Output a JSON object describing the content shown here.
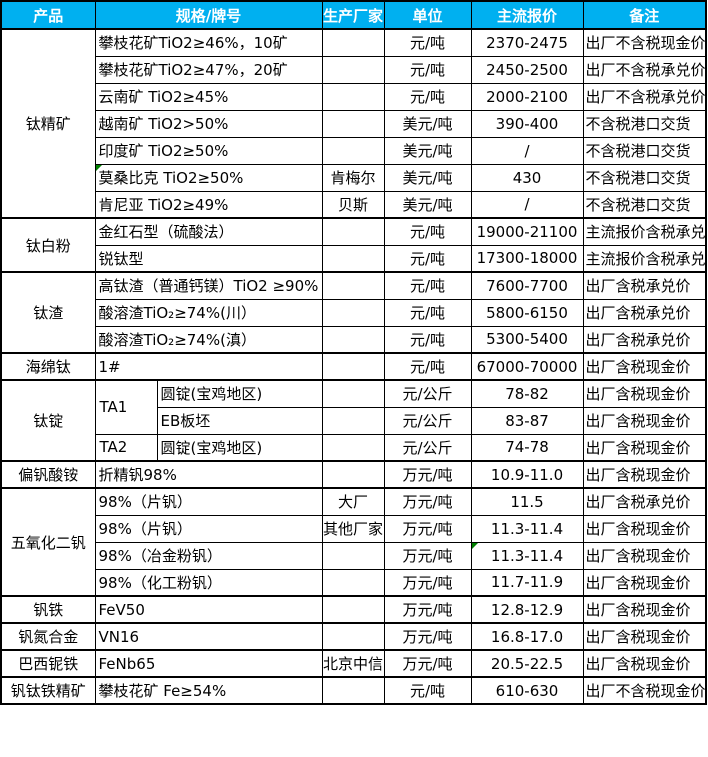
{
  "colors": {
    "header_bg": "#00B0F0",
    "header_text": "#FFFFFF",
    "border": "#000000",
    "marker": "#008000"
  },
  "header": {
    "columns": [
      "产品",
      "规格/牌号",
      "生产厂家",
      "单位",
      "主流报价",
      "备注"
    ]
  },
  "groups": [
    {
      "product": "钛精矿",
      "rows": [
        {
          "spec": "攀枝花矿TiO2≥46%，10矿",
          "maker": "",
          "unit": "元/吨",
          "price": "2370-2475",
          "note": "出厂不含税现金价"
        },
        {
          "spec": "攀枝花矿TiO2≥47%，20矿",
          "maker": "",
          "unit": "元/吨",
          "price": "2450-2500",
          "note": "出厂不含税承兑价"
        },
        {
          "spec": "云南矿 TiO2≥45%",
          "maker": "",
          "unit": "元/吨",
          "price": "2000-2100",
          "note": "出厂不含税承兑价"
        },
        {
          "spec": "越南矿 TiO2>50%",
          "maker": "",
          "unit": "美元/吨",
          "price": "390-400",
          "note": "不含税港口交货"
        },
        {
          "spec": "印度矿 TiO2≥50%",
          "maker": "",
          "unit": "美元/吨",
          "price": "/",
          "note": "不含税港口交货"
        },
        {
          "spec": "莫桑比克 TiO2≥50%",
          "maker": "肯梅尔",
          "unit": "美元/吨",
          "price": "430",
          "note": "不含税港口交货",
          "marker": "spec"
        },
        {
          "spec": "肯尼亚 TiO2≥49%",
          "maker": "贝斯",
          "unit": "美元/吨",
          "price": "/",
          "note": "不含税港口交货"
        }
      ]
    },
    {
      "product": "钛白粉",
      "rows": [
        {
          "spec": "金红石型（硫酸法）",
          "maker": "",
          "unit": "元/吨",
          "price": "19000-21100",
          "note": "主流报价含税承兑"
        },
        {
          "spec": "锐钛型",
          "maker": "",
          "unit": "元/吨",
          "price": "17300-18000",
          "note": "主流报价含税承兑"
        }
      ]
    },
    {
      "product": "钛渣",
      "rows": [
        {
          "spec": "高钛渣（普通钙镁）TiO2 ≥90%",
          "maker": "",
          "unit": "元/吨",
          "price": "7600-7700",
          "note": "出厂含税承兑价"
        },
        {
          "spec": "酸溶渣TiO₂≥74%(川）",
          "maker": "",
          "unit": "元/吨",
          "price": "5800-6150",
          "note": "出厂含税承兑价"
        },
        {
          "spec": "酸溶渣TiO₂≥74%(滇）",
          "maker": "",
          "unit": "元/吨",
          "price": "5300-5400",
          "note": "出厂含税承兑价"
        }
      ]
    },
    {
      "product": "海绵钛",
      "rows": [
        {
          "spec": "1#",
          "maker": "",
          "unit": "元/吨",
          "price": "67000-70000",
          "note": "出厂含税现金价"
        }
      ]
    },
    {
      "product": "钛锭",
      "rows": [
        {
          "grade": "TA1",
          "grade_rowspan": 2,
          "spec": "圆锭(宝鸡地区)",
          "maker": "",
          "unit": "元/公斤",
          "price": "78-82",
          "note": "出厂含税现金价"
        },
        {
          "grade": null,
          "spec": "EB板坯",
          "maker": "",
          "unit": "元/公斤",
          "price": "83-87",
          "note": "出厂含税现金价"
        },
        {
          "grade": "TA2",
          "spec": "圆锭(宝鸡地区)",
          "maker": "",
          "unit": "元/公斤",
          "price": "74-78",
          "note": "出厂含税现金价"
        }
      ]
    },
    {
      "product": "偏钒酸铵",
      "rows": [
        {
          "spec": "折精钒98%",
          "maker": "",
          "unit": "万元/吨",
          "price": "10.9-11.0",
          "note": "出厂含税现金价"
        }
      ]
    },
    {
      "product": "五氧化二钒",
      "rows": [
        {
          "spec": "98%（片钒）",
          "maker": "大厂",
          "unit": "万元/吨",
          "price": "11.5",
          "note": "出厂含税承兑价"
        },
        {
          "spec": "98%（片钒）",
          "maker": "其他厂家",
          "unit": "万元/吨",
          "price": "11.3-11.4",
          "note": "出厂含税现金价"
        },
        {
          "spec": "98%（冶金粉钒）",
          "maker": "",
          "unit": "万元/吨",
          "price": "11.3-11.4",
          "note": "出厂含税现金价",
          "marker": "price"
        },
        {
          "spec": "98%（化工粉钒）",
          "maker": "",
          "unit": "万元/吨",
          "price": "11.7-11.9",
          "note": "出厂含税现金价"
        }
      ]
    },
    {
      "product": "钒铁",
      "rows": [
        {
          "spec": "FeV50",
          "maker": "",
          "unit": "万元/吨",
          "price": "12.8-12.9",
          "note": "出厂含税现金价"
        }
      ]
    },
    {
      "product": "钒氮合金",
      "rows": [
        {
          "spec": "VN16",
          "maker": "",
          "unit": "万元/吨",
          "price": "16.8-17.0",
          "note": "出厂含税现金价"
        }
      ]
    },
    {
      "product": "巴西铌铁",
      "rows": [
        {
          "spec": "FeNb65",
          "maker": "北京中信",
          "unit": "万元/吨",
          "price": "20.5-22.5",
          "note": "出厂含税现金价"
        }
      ]
    },
    {
      "product": "钒钛铁精矿",
      "rows": [
        {
          "spec": "攀枝花矿 Fe≥54%",
          "maker": "",
          "unit": "元/吨",
          "price": "610-630",
          "note": "出厂不含税现金价"
        }
      ]
    }
  ]
}
